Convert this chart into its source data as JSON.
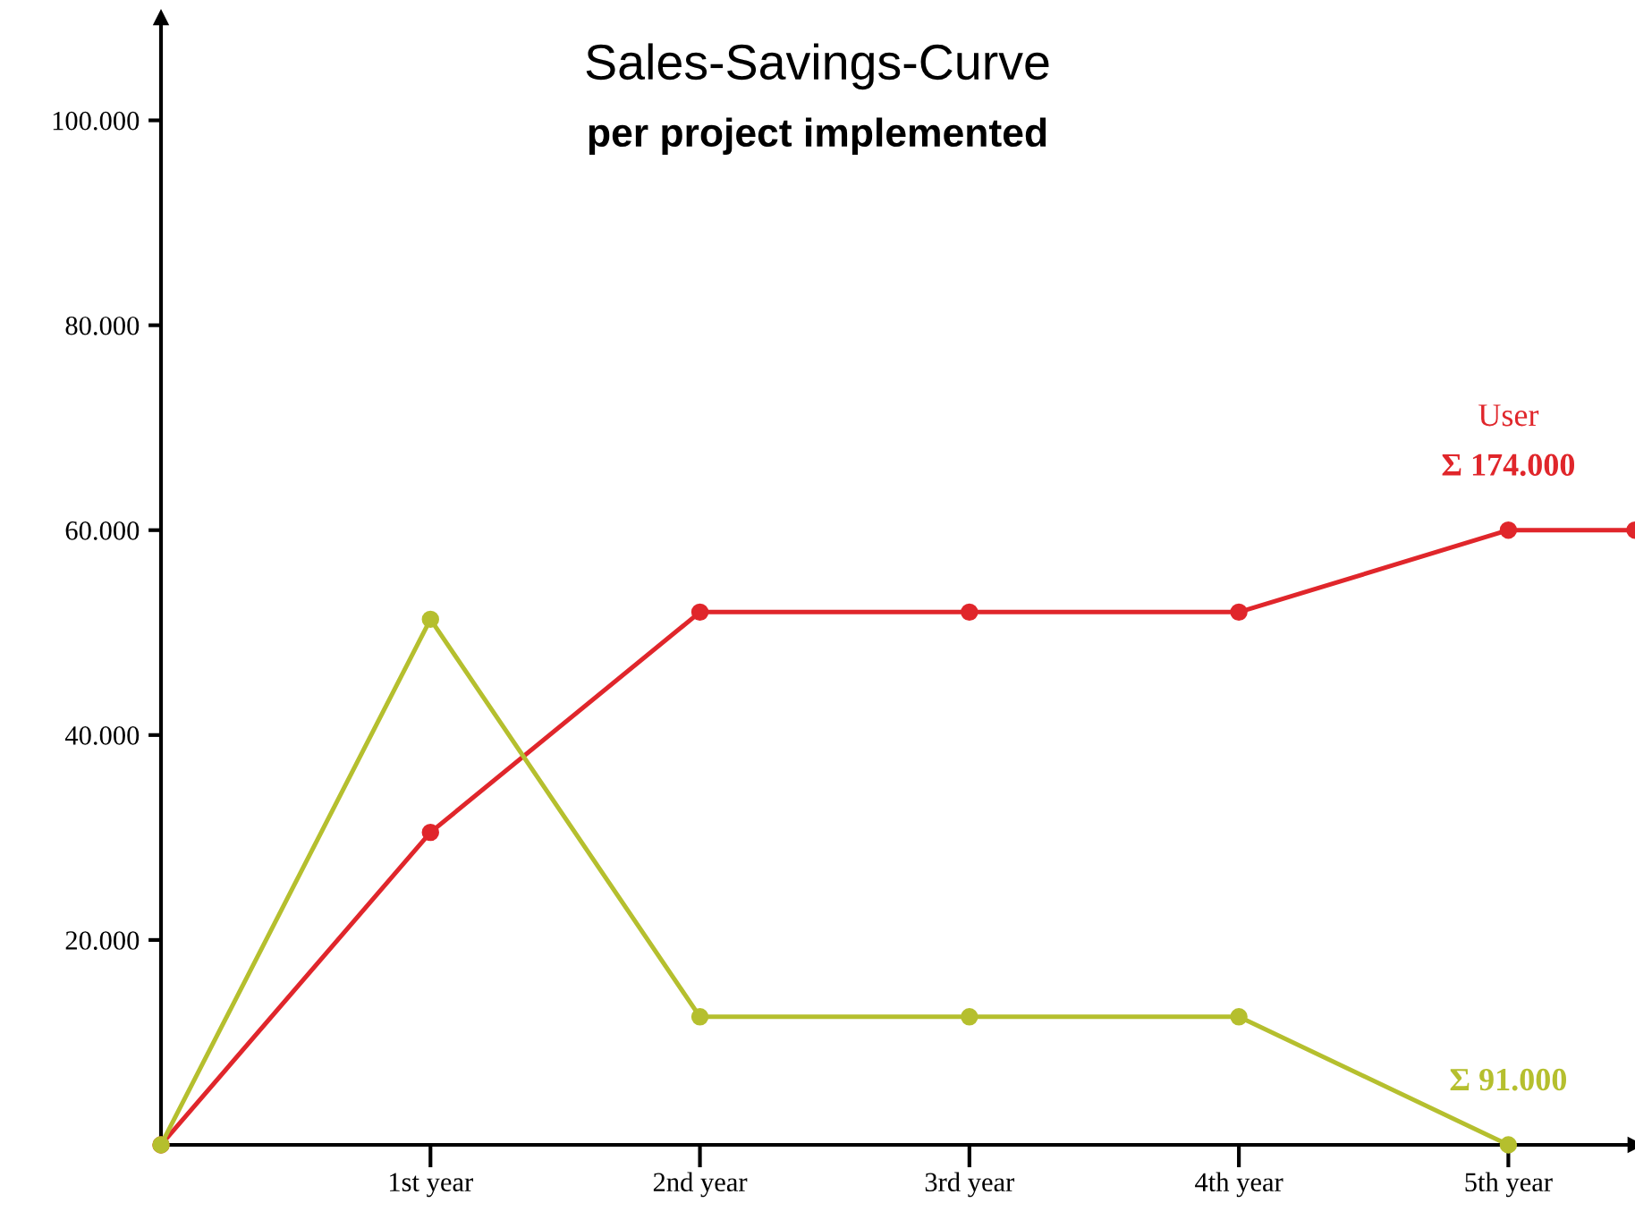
{
  "chart_data": {
    "type": "line",
    "title": "Sales-Savings-Curve",
    "subtitle": "per project implemented",
    "x": [
      0,
      1,
      2,
      3,
      4,
      5
    ],
    "xlim": [
      0,
      5.47
    ],
    "xticks": [
      {
        "value": 1,
        "label": "1st year"
      },
      {
        "value": 2,
        "label": "2nd year"
      },
      {
        "value": 3,
        "label": "3rd year"
      },
      {
        "value": 4,
        "label": "4th year"
      },
      {
        "value": 5,
        "label": "5th year"
      }
    ],
    "ylim": [
      0,
      110000
    ],
    "yticks": [
      {
        "value": 20000,
        "label": "20.000"
      },
      {
        "value": 40000,
        "label": "40.000"
      },
      {
        "value": 60000,
        "label": "60.000"
      },
      {
        "value": 80000,
        "label": "80.000"
      },
      {
        "value": 100000,
        "label": "100.000"
      }
    ],
    "series": [
      {
        "name": "User",
        "color": "#e0262b",
        "x": [
          0,
          1,
          2,
          3,
          4,
          5,
          5.47
        ],
        "values": [
          0,
          30500,
          52000,
          52000,
          52000,
          60000,
          60000
        ]
      },
      {
        "color": "#b5bf2e",
        "values": [
          0,
          51300,
          12500,
          12500,
          12500,
          0
        ]
      }
    ],
    "annotations": [
      {
        "text": "Σ 174.000",
        "x": 5,
        "y": 60000
      },
      {
        "text": "Σ 91.000",
        "x": 5,
        "y": 0
      }
    ],
    "marker": "circle",
    "line_style": "solid",
    "grid": false,
    "legend": false
  }
}
